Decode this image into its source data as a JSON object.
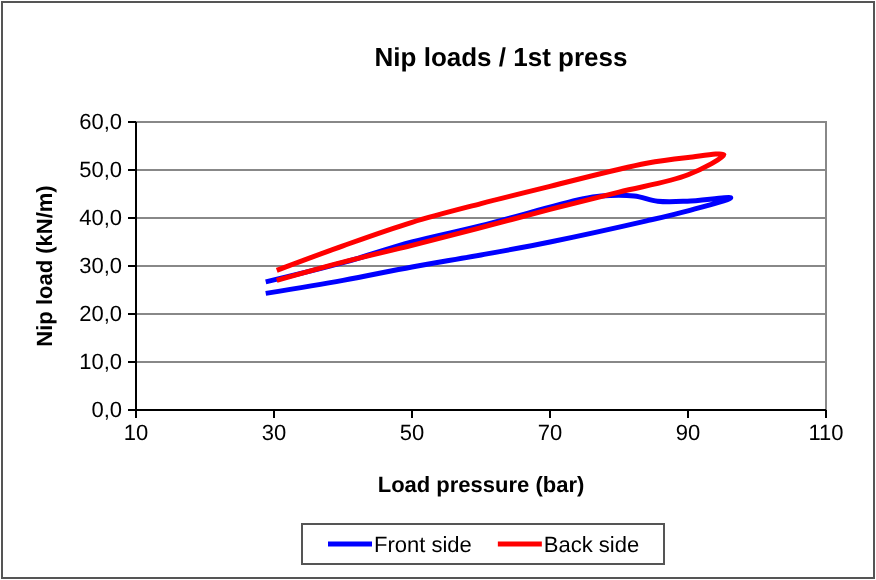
{
  "chart_data": {
    "type": "line",
    "title": "Nip loads / 1st press",
    "xlabel": "Load pressure (bar)",
    "ylabel": "Nip load (kN/m)",
    "xlim": [
      10,
      110
    ],
    "xticks": [
      10,
      30,
      50,
      70,
      90,
      110
    ],
    "ylim": [
      0,
      60
    ],
    "yticks": [
      {
        "value": 0,
        "label": "0,0"
      },
      {
        "value": 10,
        "label": "10,0"
      },
      {
        "value": 20,
        "label": "20,0"
      },
      {
        "value": 30,
        "label": "30,0"
      },
      {
        "value": 40,
        "label": "40,0"
      },
      {
        "value": 50,
        "label": "50,0"
      },
      {
        "value": 60,
        "label": "60,0"
      }
    ],
    "grid": "y",
    "legend": "bottom",
    "marker": "none",
    "line_style": "solid",
    "series": [
      {
        "name": "Front side",
        "color": "#0000ff",
        "x": [
          28.8,
          40,
          50,
          60,
          70,
          84,
          90,
          96.2,
          89.9,
          85.6,
          82.2,
          77.4,
          74.5,
          60,
          50,
          40,
          28.8
        ],
        "values": [
          24.3,
          27,
          29.8,
          32.3,
          35,
          39.4,
          41.5,
          44.2,
          43.5,
          43.5,
          44.6,
          44.6,
          43.9,
          38.4,
          35,
          30.7,
          26.7
        ]
      },
      {
        "name": "Back side",
        "color": "#ff0000",
        "x": [
          30.4,
          40,
          50,
          60,
          70,
          84,
          90,
          95.2,
          90,
          80,
          70,
          60,
          50,
          40,
          30.4
        ],
        "values": [
          29.1,
          34.2,
          39.1,
          43,
          46.6,
          51.4,
          52.6,
          53.2,
          49,
          45.4,
          41.8,
          38,
          34.3,
          30.8,
          27
        ]
      }
    ]
  }
}
